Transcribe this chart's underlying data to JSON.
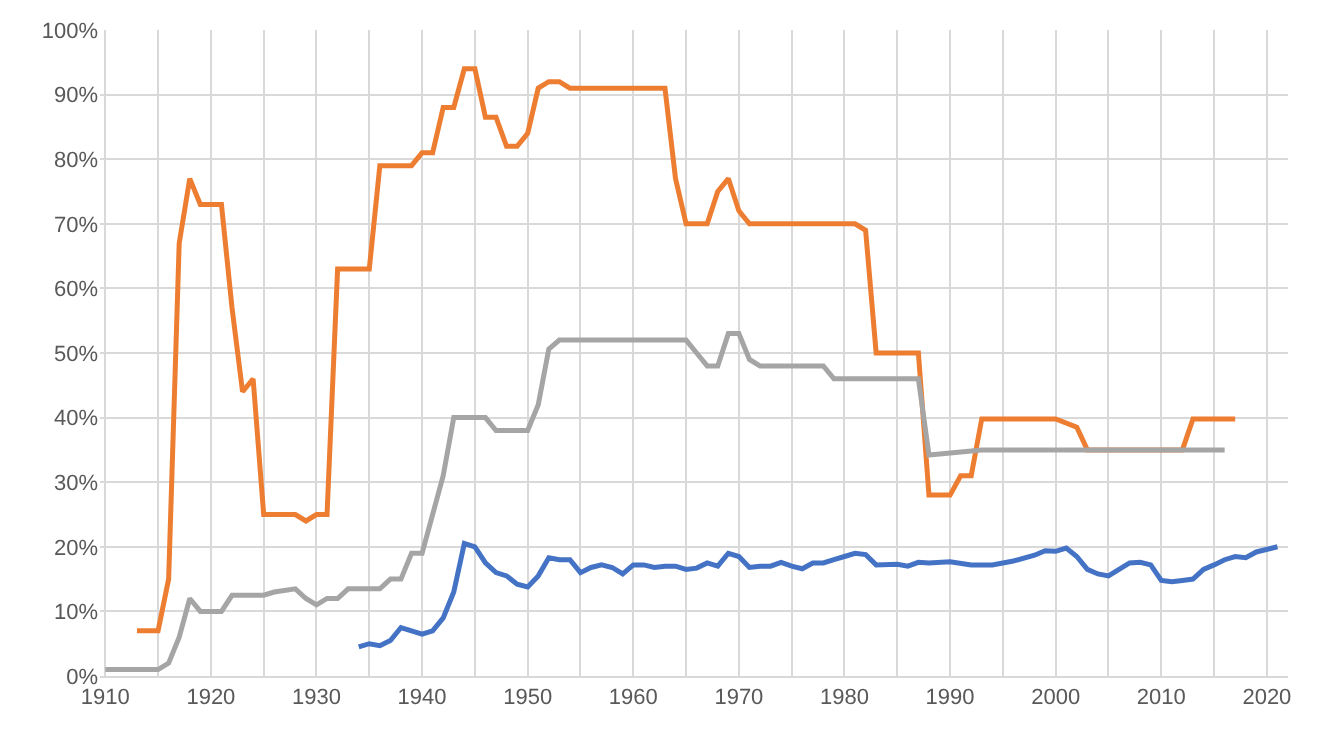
{
  "chart_data": {
    "type": "line",
    "xlim": [
      1909.5,
      2022
    ],
    "xticks": [
      1910,
      {
        "value": 1915,
        "label": null
      },
      1920,
      {
        "value": 1925,
        "label": null
      },
      1930,
      {
        "value": 1935,
        "label": null
      },
      1940,
      {
        "value": 1945,
        "label": null
      },
      1950,
      {
        "value": 1955,
        "label": null
      },
      1960,
      {
        "value": 1965,
        "label": null
      },
      1970,
      {
        "value": 1975,
        "label": null
      },
      1980,
      {
        "value": 1985,
        "label": null
      },
      1990,
      {
        "value": 1995,
        "label": null
      },
      2000,
      {
        "value": 2005,
        "label": null
      },
      2010,
      {
        "value": 2015,
        "label": null
      },
      2020
    ],
    "ylim": [
      0,
      100
    ],
    "yticks": [
      {
        "value": 0,
        "label": "0%"
      },
      {
        "value": 10,
        "label": "10%"
      },
      {
        "value": 20,
        "label": "20%"
      },
      {
        "value": 30,
        "label": "30%"
      },
      {
        "value": 40,
        "label": "40%"
      },
      {
        "value": 50,
        "label": "50%"
      },
      {
        "value": 60,
        "label": "60%"
      },
      {
        "value": 70,
        "label": "70%"
      },
      {
        "value": 80,
        "label": "80%"
      },
      {
        "value": 90,
        "label": "90%"
      },
      {
        "value": 100,
        "label": "100%"
      }
    ],
    "grid": true,
    "marker": "none",
    "line_style": "solid",
    "series": [
      {
        "color": "#ed7d31",
        "x": [
          1913,
          1915,
          1916,
          1917,
          1918,
          1919,
          1921,
          1922,
          1923,
          1924,
          1925,
          1928,
          1929,
          1930,
          1931,
          1932,
          1935,
          1936,
          1939,
          1940,
          1941,
          1942,
          1943,
          1944,
          1945,
          1946,
          1947,
          1948,
          1949,
          1950,
          1951,
          1952,
          1953,
          1954,
          1963,
          1964,
          1965,
          1967,
          1968,
          1969,
          1970,
          1971,
          1981,
          1982,
          1983,
          1987,
          1988,
          1990,
          1991,
          1992,
          1993,
          2000,
          2002,
          2003,
          2012,
          2013,
          2017
        ],
        "values": [
          7,
          7,
          15,
          67,
          77,
          73,
          73,
          57,
          44,
          46,
          25,
          25,
          24,
          25,
          25,
          63,
          63,
          79,
          79,
          81,
          81,
          88,
          88,
          94,
          94,
          86.5,
          86.5,
          82,
          82,
          84,
          91,
          92,
          92,
          91,
          91,
          77,
          70,
          70,
          75,
          77,
          72,
          70,
          70,
          69,
          50,
          50,
          28,
          28,
          31,
          31,
          39.8,
          39.8,
          38.5,
          35,
          35,
          39.8,
          39.8
        ]
      },
      {
        "color": "#a5a5a5",
        "x": [
          1910,
          1915,
          1916,
          1917,
          1918,
          1919,
          1921,
          1922,
          1925,
          1926,
          1928,
          1929,
          1930,
          1931,
          1932,
          1933,
          1936,
          1937,
          1938,
          1939,
          1940,
          1941,
          1942,
          1943,
          1946,
          1947,
          1950,
          1951,
          1952,
          1953,
          1965,
          1966,
          1967,
          1968,
          1969,
          1970,
          1971,
          1972,
          1978,
          1979,
          1987,
          1988,
          1993,
          2016
        ],
        "values": [
          1,
          1,
          2,
          6,
          12,
          10,
          10,
          12.5,
          12.5,
          13,
          13.5,
          12,
          11,
          12,
          12,
          13.5,
          13.5,
          15,
          15,
          19,
          19,
          25,
          31,
          40,
          40,
          38,
          38,
          42,
          50.6,
          52,
          52,
          50,
          48,
          48,
          53,
          53,
          49,
          48,
          48,
          46,
          46,
          34.2,
          35,
          35
        ]
      },
      {
        "color": "#4472c4",
        "x": [
          1934,
          1935,
          1936,
          1937,
          1938,
          1939,
          1940,
          1941,
          1942,
          1943,
          1944,
          1945,
          1946,
          1947,
          1948,
          1949,
          1950,
          1951,
          1952,
          1953,
          1954,
          1955,
          1956,
          1957,
          1958,
          1959,
          1960,
          1961,
          1962,
          1963,
          1964,
          1965,
          1966,
          1967,
          1968,
          1969,
          1970,
          1971,
          1972,
          1973,
          1974,
          1975,
          1976,
          1977,
          1978,
          1979,
          1980,
          1981,
          1982,
          1983,
          1985,
          1986,
          1987,
          1988,
          1990,
          1992,
          1994,
          1996,
          1998,
          1999,
          2000,
          2001,
          2002,
          2003,
          2004,
          2005,
          2006,
          2007,
          2008,
          2009,
          2010,
          2011,
          2012,
          2013,
          2014,
          2015,
          2016,
          2017,
          2018,
          2019,
          2021
        ],
        "values": [
          4.5,
          5,
          4.7,
          5.5,
          7.5,
          7,
          6.5,
          7,
          9,
          13,
          20.5,
          20,
          17.5,
          16,
          15.5,
          14.2,
          13.8,
          15.5,
          18.3,
          18,
          18,
          16,
          16.8,
          17.2,
          16.8,
          15.8,
          17.2,
          17.2,
          16.8,
          17,
          17,
          16.5,
          16.7,
          17.5,
          17,
          19,
          18.5,
          16.8,
          17,
          17,
          17.6,
          17,
          16.6,
          17.5,
          17.5,
          18,
          18.5,
          19,
          18.8,
          17.2,
          17.3,
          17,
          17.6,
          17.5,
          17.7,
          17.2,
          17.2,
          17.8,
          18.7,
          19.4,
          19.3,
          19.8,
          18.5,
          16.5,
          15.8,
          15.5,
          16.5,
          17.5,
          17.6,
          17.2,
          14.8,
          14.6,
          14.8,
          15,
          16.5,
          17.2,
          18,
          18.5,
          18.3,
          19.2,
          20
        ]
      }
    ]
  }
}
